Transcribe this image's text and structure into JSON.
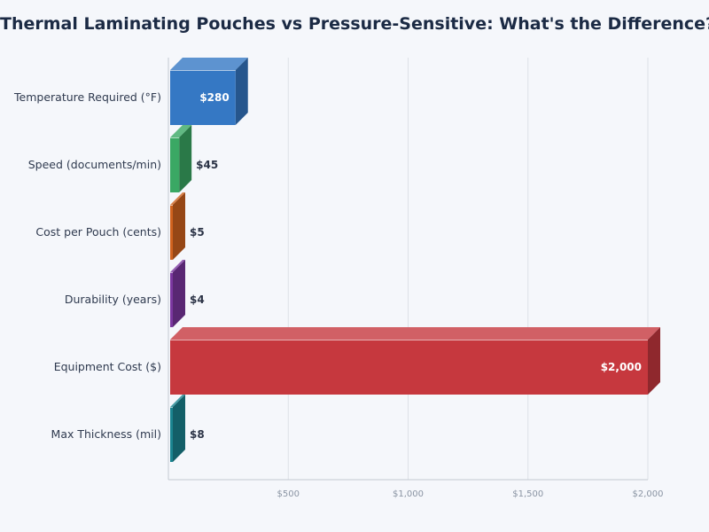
{
  "chart_data": {
    "type": "bar",
    "orientation": "horizontal",
    "title": "Thermal Laminating Pouches vs Pressure-Sensitive: What's the Difference?",
    "categories": [
      "Temperature Required (°F)",
      "Speed (documents/min)",
      "Cost per Pouch (cents)",
      "Durability (years)",
      "Equipment Cost ($)",
      "Max Thickness (mil)"
    ],
    "values": [
      280,
      45,
      5,
      4,
      2000,
      8
    ],
    "data_labels": [
      "$280",
      "$45",
      "$5",
      "$4",
      "$2,000",
      "$8"
    ],
    "colors": [
      "#3578c4",
      "#3aa864",
      "#d0621e",
      "#7b36a0",
      "#c6383e",
      "#1a8490"
    ],
    "xlim": [
      0,
      2000
    ],
    "xticks": [
      500,
      1000,
      1500,
      2000
    ],
    "xtick_labels": [
      "$500",
      "$1,000",
      "$1,500",
      "$2,000"
    ],
    "grid": true,
    "style": "3d"
  }
}
